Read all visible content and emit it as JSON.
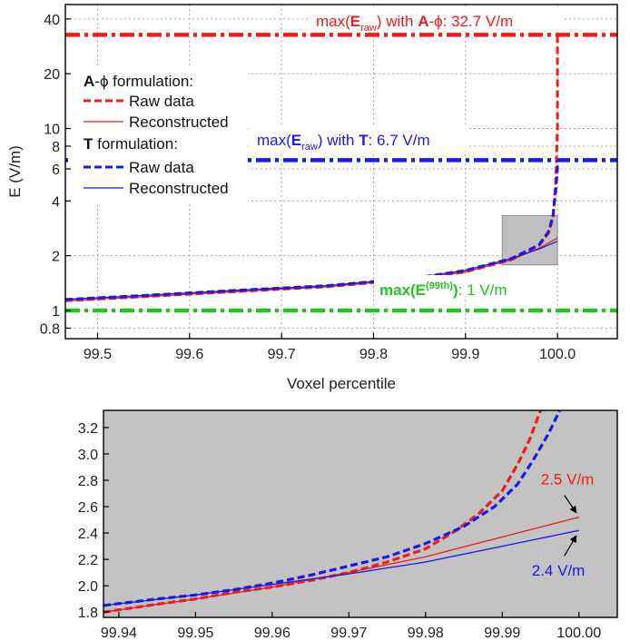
{
  "chart_data": [
    {
      "type": "line",
      "xlabel": "Voxel percentile",
      "ylabel": "E (V/m)",
      "xlim": [
        99.465,
        100.065
      ],
      "ylim": [
        0.7,
        48
      ],
      "yscale": "log",
      "grid": true,
      "xticks": [
        "99.5",
        "99.6",
        "99.7",
        "99.8",
        "99.9",
        "100.0"
      ],
      "xtick_values": [
        99.5,
        99.6,
        99.7,
        99.8,
        99.9,
        100.0
      ],
      "yticks": [
        "0.8",
        "1",
        "2",
        "4",
        "6",
        "8",
        "10",
        "20",
        "40"
      ],
      "ytick_values": [
        0.8,
        1,
        2,
        4,
        6,
        8,
        10,
        20,
        40
      ],
      "legend": {
        "placement": "top-left",
        "group1_bold": "A",
        "group1_rest": "-ϕ formulation:",
        "group1_raw": "Raw data",
        "group1_rec": "Reconstructed",
        "group2_bold": "T",
        "group2_rest": " formulation:",
        "group2_raw": "Raw data",
        "group2_rec": "Reconstructed"
      },
      "series": [
        {
          "group": "A-ϕ",
          "kind": "Raw data",
          "color": "#ee1c1c",
          "style": "dash",
          "x": [
            99.465,
            99.55,
            99.65,
            99.75,
            99.85,
            99.9,
            99.95,
            99.98,
            99.99,
            99.995,
            99.998,
            100.0,
            100.0
          ],
          "y": [
            1.13,
            1.19,
            1.27,
            1.35,
            1.5,
            1.63,
            1.9,
            2.28,
            2.65,
            3.2,
            5.0,
            10.0,
            32.7
          ]
        },
        {
          "group": "A-ϕ",
          "kind": "Reconstructed",
          "color": "#ee1c1c",
          "style": "solid",
          "x": [
            99.465,
            99.55,
            99.65,
            99.75,
            99.85,
            99.9,
            99.95,
            99.98,
            100.0
          ],
          "y": [
            1.13,
            1.19,
            1.27,
            1.35,
            1.5,
            1.63,
            1.9,
            2.2,
            2.5
          ]
        },
        {
          "group": "T",
          "kind": "Raw data",
          "color": "#1a1ae6",
          "style": "dash",
          "x": [
            99.465,
            99.55,
            99.65,
            99.75,
            99.85,
            99.9,
            99.95,
            99.98,
            99.99,
            99.995,
            99.998,
            100.0,
            100.0
          ],
          "y": [
            1.15,
            1.21,
            1.29,
            1.37,
            1.52,
            1.66,
            1.93,
            2.3,
            2.7,
            3.3,
            4.5,
            6.0,
            6.7
          ]
        },
        {
          "group": "T",
          "kind": "Reconstructed",
          "color": "#1a1ae6",
          "style": "solid",
          "x": [
            99.465,
            99.55,
            99.65,
            99.75,
            99.85,
            99.9,
            99.95,
            99.98,
            100.0
          ],
          "y": [
            1.15,
            1.21,
            1.29,
            1.37,
            1.52,
            1.66,
            1.93,
            2.18,
            2.4
          ]
        }
      ],
      "reference_lines": [
        {
          "y": 32.7,
          "color": "#ee1c1c",
          "pre": "max(",
          "bold": "E",
          "sub": "raw",
          "mid": ") with ",
          "bold2": "A",
          "post": "-ϕ: 32.7 V/m"
        },
        {
          "y": 6.7,
          "color": "#1a1ae6",
          "pre": "max(",
          "bold": "E",
          "sub": "raw",
          "mid": ") with ",
          "bold2": "T",
          "post": ": 6.7 V/m"
        },
        {
          "y": 1.0,
          "color": "#22c322",
          "pre": "",
          "bold": "max(E",
          "sup": "(99th)",
          "bold_end": ")",
          "post": ": 1 V/m"
        }
      ],
      "zoom_box": {
        "x": [
          99.94,
          100.0
        ],
        "y": [
          1.78,
          3.32
        ]
      }
    },
    {
      "type": "line",
      "xlabel": "",
      "ylabel": "",
      "xlim": [
        99.938,
        100.005
      ],
      "ylim": [
        1.76,
        3.33
      ],
      "background": "#c3c3c3",
      "xticks": [
        "99.94",
        "99.95",
        "99.96",
        "99.97",
        "99.98",
        "99.99",
        "100.00"
      ],
      "xtick_values": [
        99.94,
        99.95,
        99.96,
        99.97,
        99.98,
        99.99,
        100.0
      ],
      "yticks": [
        "1.8",
        "2.0",
        "2.2",
        "2.4",
        "2.6",
        "2.8",
        "3.0",
        "3.2"
      ],
      "ytick_values": [
        1.8,
        2.0,
        2.2,
        2.4,
        2.6,
        2.8,
        3.0,
        3.2
      ],
      "series": [
        {
          "group": "A-ϕ",
          "kind": "Raw data",
          "color": "#ee1c1c",
          "style": "dash",
          "x": [
            99.938,
            99.945,
            99.95,
            99.955,
            99.96,
            99.965,
            99.97,
            99.975,
            99.98,
            99.984,
            99.987,
            99.99,
            99.992,
            99.9935,
            99.995
          ],
          "y": [
            1.8,
            1.86,
            1.9,
            1.95,
            1.99,
            2.04,
            2.1,
            2.18,
            2.28,
            2.42,
            2.55,
            2.72,
            2.92,
            3.1,
            3.33
          ]
        },
        {
          "group": "A-ϕ",
          "kind": "Reconstructed",
          "color": "#ee1c1c",
          "style": "solid",
          "x": [
            99.938,
            99.95,
            99.96,
            99.97,
            99.98,
            99.99,
            100.0
          ],
          "y": [
            1.8,
            1.9,
            1.99,
            2.1,
            2.22,
            2.37,
            2.52
          ]
        },
        {
          "group": "T",
          "kind": "Raw data",
          "color": "#1a1ae6",
          "style": "dash",
          "x": [
            99.938,
            99.945,
            99.95,
            99.955,
            99.96,
            99.965,
            99.97,
            99.975,
            99.98,
            99.985,
            99.989,
            99.992,
            99.994,
            99.996,
            99.9975
          ],
          "y": [
            1.85,
            1.9,
            1.93,
            1.97,
            2.02,
            2.08,
            2.15,
            2.22,
            2.32,
            2.45,
            2.6,
            2.77,
            2.95,
            3.15,
            3.33
          ]
        },
        {
          "group": "T",
          "kind": "Reconstructed",
          "color": "#1a1ae6",
          "style": "solid",
          "x": [
            99.938,
            99.95,
            99.96,
            99.97,
            99.98,
            99.99,
            100.0
          ],
          "y": [
            1.85,
            1.93,
            2.01,
            2.09,
            2.18,
            2.3,
            2.42
          ]
        }
      ],
      "annotations": [
        {
          "text": "2.5 V/m",
          "color": "#ee1c1c",
          "point": [
            100.0,
            2.52
          ],
          "placement": "above-left"
        },
        {
          "text": "2.4 V/m",
          "color": "#1a1ae6",
          "point": [
            100.0,
            2.42
          ],
          "placement": "below-left"
        }
      ]
    }
  ]
}
